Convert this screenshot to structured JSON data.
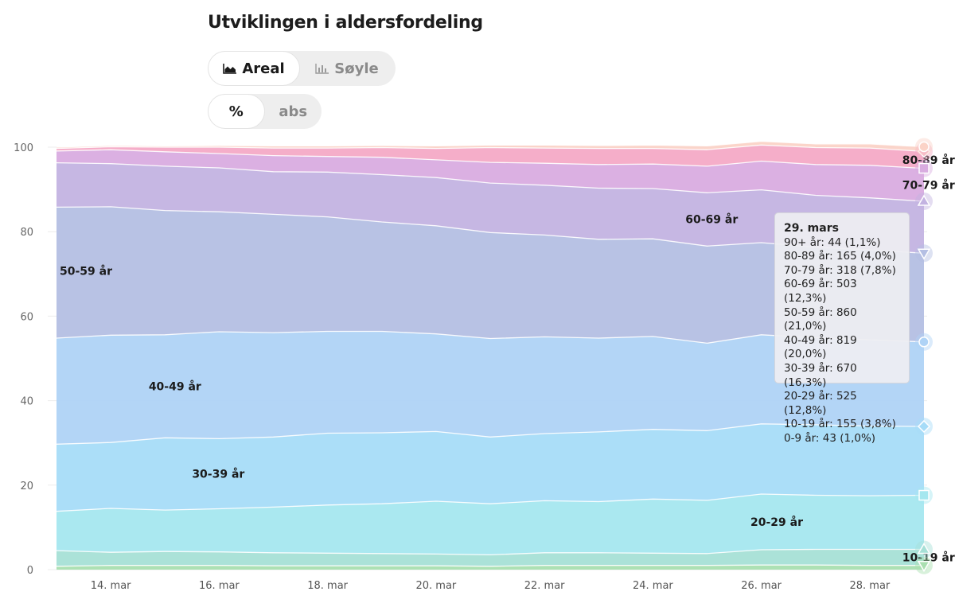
{
  "header": {
    "title": "Utviklingen i aldersfordeling"
  },
  "toggles": {
    "chart_type": [
      {
        "label": "Areal",
        "icon": "area-chart-icon",
        "active": true
      },
      {
        "label": "Søyle",
        "icon": "bar-chart-icon",
        "active": false
      }
    ],
    "scale": [
      {
        "label": "%",
        "active": true
      },
      {
        "label": "abs",
        "active": false
      }
    ]
  },
  "tooltip": {
    "title": "29. mars",
    "lines": [
      "90+ år: 44 (1,1%)",
      "80-89 år: 165 (4,0%)",
      "70-79 år: 318 (7,8%)",
      "60-69 år: 503 (12,3%)",
      "50-59 år: 860 (21,0%)",
      "40-49 år: 819 (20,0%)",
      "30-39 år: 670 (16,3%)",
      "20-29 år: 525 (12,8%)",
      "10-19 år: 155 (3,8%)",
      "0-9 år: 43 (1,0%)"
    ]
  },
  "chart_data": {
    "type": "area",
    "stacked": true,
    "x": [
      "13. mars",
      "14. mars",
      "15. mars",
      "16. mars",
      "17. mars",
      "18. mars",
      "19. mars",
      "20. mars",
      "21. mars",
      "22. mars",
      "23. mars",
      "24. mars",
      "25. mars",
      "26. mars",
      "27. mars",
      "28. mars",
      "29. mars"
    ],
    "x_tick_labels": [
      "14. mar",
      "16. mar",
      "18. mar",
      "20. mar",
      "22. mar",
      "24. mar",
      "26. mar",
      "28. mar"
    ],
    "y_ticks": [
      0,
      20,
      40,
      60,
      80,
      100
    ],
    "ylim": [
      0,
      100
    ],
    "grid": true,
    "series": [
      {
        "name": "0-9 år",
        "color": "#a9dfb0",
        "values": [
          0.8,
          1.0,
          1.0,
          1.0,
          0.9,
          0.9,
          0.9,
          0.9,
          0.8,
          1.0,
          1.0,
          1.0,
          1.0,
          1.1,
          1.1,
          1.0,
          1.0
        ]
      },
      {
        "name": "10-19 år",
        "color": "#a6e0d6",
        "values": [
          3.7,
          3.1,
          3.3,
          3.2,
          3.1,
          3.0,
          2.9,
          2.8,
          2.7,
          3.0,
          3.0,
          2.9,
          2.8,
          3.6,
          3.7,
          3.8,
          3.8
        ]
      },
      {
        "name": "20-29 år",
        "color": "#a5e7ef",
        "values": [
          9.3,
          10.4,
          9.8,
          10.2,
          10.8,
          11.4,
          11.8,
          12.5,
          12.1,
          12.3,
          12.1,
          12.8,
          12.6,
          13.2,
          12.8,
          12.7,
          12.8
        ]
      },
      {
        "name": "30-39 år",
        "color": "#a6dcf8",
        "values": [
          15.9,
          15.6,
          17.1,
          16.6,
          16.6,
          17.0,
          16.8,
          16.5,
          15.8,
          15.9,
          16.5,
          16.5,
          16.5,
          16.6,
          16.7,
          16.5,
          16.3
        ]
      },
      {
        "name": "40-49 år",
        "color": "#afd3f6",
        "values": [
          25.1,
          25.4,
          24.4,
          25.3,
          24.7,
          24.1,
          24.0,
          23.1,
          23.3,
          22.9,
          22.2,
          22.0,
          20.7,
          21.1,
          20.6,
          20.4,
          20.0
        ]
      },
      {
        "name": "50-59 år",
        "color": "#b4bfe3",
        "values": [
          31.0,
          30.4,
          29.4,
          28.4,
          28.0,
          27.1,
          25.9,
          25.6,
          25.1,
          24.1,
          23.4,
          23.1,
          23.0,
          21.8,
          21.4,
          21.3,
          21.0
        ]
      },
      {
        "name": "60-69 år",
        "color": "#c3b3e1",
        "values": [
          10.5,
          10.2,
          10.5,
          10.4,
          10.1,
          10.6,
          11.2,
          11.4,
          11.7,
          11.8,
          12.1,
          11.9,
          12.6,
          12.5,
          12.3,
          12.3,
          12.3
        ]
      },
      {
        "name": "70-79 år",
        "color": "#d9ace0",
        "values": [
          2.8,
          3.3,
          3.4,
          3.4,
          3.8,
          3.7,
          4.1,
          4.2,
          4.9,
          5.2,
          5.6,
          5.8,
          6.3,
          6.8,
          7.3,
          7.7,
          7.8
        ]
      },
      {
        "name": "80-89 år",
        "color": "#f4aac6",
        "values": [
          0.6,
          0.7,
          1.1,
          1.5,
          1.8,
          2.0,
          2.3,
          2.7,
          3.5,
          3.6,
          3.8,
          3.7,
          3.9,
          3.8,
          4.0,
          4.1,
          4.0
        ]
      },
      {
        "name": "90+ år",
        "color": "#fbd3c7",
        "values": [
          0.3,
          0.3,
          0.3,
          0.4,
          0.5,
          0.5,
          0.5,
          0.6,
          0.6,
          0.7,
          0.7,
          0.8,
          0.9,
          0.9,
          0.9,
          1.0,
          1.1
        ]
      }
    ],
    "area_labels": [
      "50-59 år",
      "40-49 år",
      "30-39 år",
      "60-69 år",
      "20-29 år",
      "80-89 år",
      "70-79 år",
      "10-19 år"
    ]
  }
}
